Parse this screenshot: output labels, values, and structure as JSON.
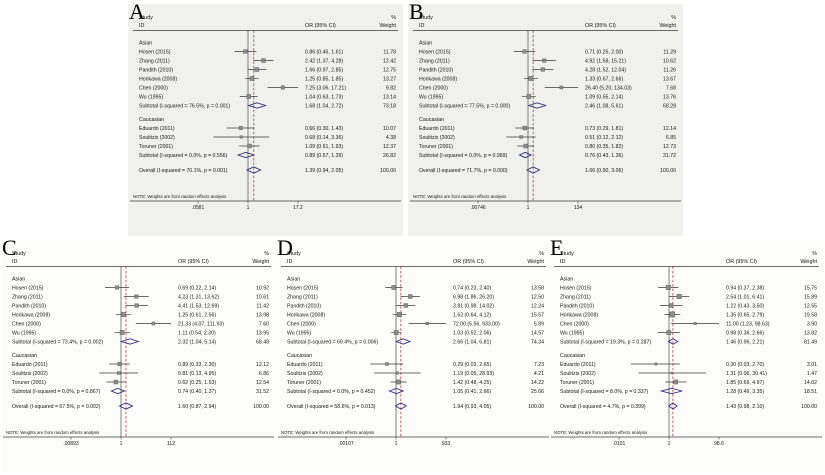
{
  "note": "NOTE: Weights are from random effects analysis",
  "columns": {
    "study": "Study",
    "id": "ID",
    "or": "OR (95% CI)",
    "pct": "%",
    "weight": "Weight"
  },
  "chart_data": [
    {
      "type": "forest",
      "label": "A",
      "axis": {
        "scale": "log",
        "min": 0.0581,
        "max": 17.21,
        "null_line": 1,
        "ticks": [
          {
            "label": ".0581",
            "value": 0.0581
          },
          {
            "label": "1",
            "value": 1
          },
          {
            "label": "17.2",
            "value": 17.2
          }
        ]
      },
      "groups": [
        {
          "name": "Asian",
          "studies": [
            {
              "id": "Hosen (2015)",
              "est": 0.86,
              "lo": 0.46,
              "hi": 1.61,
              "or": "0.86 (0.46, 1.61)",
              "weight": "11.78"
            },
            {
              "id": "Zhang (2011)",
              "est": 2.42,
              "lo": 1.37,
              "hi": 4.28,
              "or": "2.42 (1.37, 4.28)",
              "weight": "12.42"
            },
            {
              "id": "Pandith (2010)",
              "est": 1.66,
              "lo": 0.97,
              "hi": 2.85,
              "or": "1.66 (0.97, 2.85)",
              "weight": "12.75"
            },
            {
              "id": "Horikawa (2008)",
              "est": 1.25,
              "lo": 0.85,
              "hi": 1.85,
              "or": "1.25 (0.85, 1.85)",
              "weight": "13.27"
            },
            {
              "id": "Chen (2000)",
              "est": 7.25,
              "lo": 3.06,
              "hi": 17.21,
              "or": "7.25 (3.06, 17.21)",
              "weight": "9.82"
            },
            {
              "id": "Wu (1995)",
              "est": 1.04,
              "lo": 0.63,
              "hi": 1.73,
              "or": "1.04 (0.63, 1.73)",
              "weight": "13.14"
            }
          ],
          "subtotal": {
            "id": "Subtotal  (I-squared = 76.5%, p = 0.001)",
            "est": 1.68,
            "lo": 1.04,
            "hi": 2.72,
            "or": "1.68 (1.04, 2.72)",
            "weight": "73.18"
          }
        },
        {
          "name": "Caucasian",
          "studies": [
            {
              "id": "Eduardo (2011)",
              "est": 0.66,
              "lo": 0.3,
              "hi": 1.43,
              "or": "0.66 (0.30, 1.43)",
              "weight": "10.07"
            },
            {
              "id": "Soulitzis (2002)",
              "est": 0.68,
              "lo": 0.14,
              "hi": 3.36,
              "or": "0.68 (0.14, 3.36)",
              "weight": "4.38"
            },
            {
              "id": "Toruner (2001)",
              "est": 1.09,
              "lo": 0.61,
              "hi": 1.93,
              "or": "1.09 (0.61, 1.93)",
              "weight": "12.37"
            }
          ],
          "subtotal": {
            "id": "Subtotal  (I-squared = 0.0%, p = 0.556)",
            "est": 0.89,
            "lo": 0.57,
            "hi": 1.39,
            "or": "0.89 (0.57, 1.39)",
            "weight": "26.82"
          }
        }
      ],
      "overall": {
        "id": "Overall  (I-squared = 70.1%, p = 0.001)",
        "est": 1.39,
        "lo": 0.94,
        "hi": 2.05,
        "or": "1.39 (0.94, 2.05)",
        "weight": "100.00"
      }
    },
    {
      "type": "forest",
      "label": "B",
      "axis": {
        "scale": "log",
        "min": 0.00746,
        "max": 134.03,
        "null_line": 1,
        "ticks": [
          {
            "label": ".00746",
            "value": 0.00746
          },
          {
            "label": "1",
            "value": 1
          },
          {
            "label": "134",
            "value": 134
          }
        ]
      },
      "groups": [
        {
          "name": "Asian",
          "studies": [
            {
              "id": "Hosen (2015)",
              "est": 0.71,
              "lo": 0.25,
              "hi": 2.0,
              "or": "0.71 (0.25, 2.00)",
              "weight": "11.29"
            },
            {
              "id": "Zhang (2011)",
              "est": 4.92,
              "lo": 1.58,
              "hi": 15.21,
              "or": "4.92 (1.58, 15.21)",
              "weight": "10.62"
            },
            {
              "id": "Pandith (2010)",
              "est": 4.28,
              "lo": 1.52,
              "hi": 12.04,
              "or": "4.28 (1.52, 12.04)",
              "weight": "11.26"
            },
            {
              "id": "Horikawa (2008)",
              "est": 1.33,
              "lo": 0.67,
              "hi": 2.66,
              "or": "1.33 (0.67, 2.66)",
              "weight": "13.67"
            },
            {
              "id": "Chen (2000)",
              "est": 26.4,
              "lo": 5.2,
              "hi": 134.03,
              "or": "26.40 (5.20, 134.03)",
              "weight": "7.68"
            },
            {
              "id": "Wu (1995)",
              "est": 1.09,
              "lo": 0.55,
              "hi": 2.14,
              "or": "1.09 (0.55, 2.14)",
              "weight": "13.76"
            }
          ],
          "subtotal": {
            "id": "Subtotal  (I-squared = 77.5%, p = 0.000)",
            "est": 2.46,
            "lo": 1.08,
            "hi": 5.61,
            "or": "2.46 (1.08, 5.61)",
            "weight": "68.28"
          }
        },
        {
          "name": "Caucasian",
          "studies": [
            {
              "id": "Eduardo (2011)",
              "est": 0.73,
              "lo": 0.29,
              "hi": 1.81,
              "or": "0.73 (0.29, 1.81)",
              "weight": "12.14"
            },
            {
              "id": "Soulitzis (2002)",
              "est": 0.51,
              "lo": 0.12,
              "hi": 2.12,
              "or": "0.51 (0.12, 2.12)",
              "weight": "6.85"
            },
            {
              "id": "Toruner (2001)",
              "est": 0.8,
              "lo": 0.35,
              "hi": 1.82,
              "or": "0.80 (0.35, 1.82)",
              "weight": "12.73"
            }
          ],
          "subtotal": {
            "id": "Subtotal  (I-squared = 0.0%, p = 0.969)",
            "est": 0.76,
            "lo": 0.43,
            "hi": 1.36,
            "or": "0.76 (0.43, 1.36)",
            "weight": "31.72"
          }
        }
      ],
      "overall": {
        "id": "Overall  (I-squared = 71.7%, p = 0.000)",
        "est": 1.66,
        "lo": 0.9,
        "hi": 3.06,
        "or": "1.66 (0.90, 3.06)",
        "weight": "100.00"
      }
    },
    {
      "type": "forest",
      "label": "C",
      "axis": {
        "scale": "log",
        "min": 0.00893,
        "max": 111.93,
        "null_line": 1,
        "ticks": [
          {
            "label": ".00893",
            "value": 0.00893
          },
          {
            "label": "1",
            "value": 1
          },
          {
            "label": "112",
            "value": 111.93
          }
        ]
      },
      "groups": [
        {
          "name": "Asian",
          "studies": [
            {
              "id": "Hosen (2015)",
              "est": 0.69,
              "lo": 0.22,
              "hi": 2.14,
              "or": "0.69 (0.22, 2.14)",
              "weight": "10.92"
            },
            {
              "id": "Zhang (2011)",
              "est": 4.23,
              "lo": 1.31,
              "hi": 13.62,
              "or": "4.23 (1.31, 13.62)",
              "weight": "10.61"
            },
            {
              "id": "Pandith (2010)",
              "est": 4.41,
              "lo": 1.53,
              "hi": 12.69,
              "or": "4.41 (1.53, 12.69)",
              "weight": "11.42"
            },
            {
              "id": "Horikawa (2008)",
              "est": 1.25,
              "lo": 0.61,
              "hi": 2.56,
              "or": "1.25 (0.61, 2.56)",
              "weight": "13.98"
            },
            {
              "id": "Chen (2000)",
              "est": 21.33,
              "lo": 4.07,
              "hi": 111.93,
              "or": "21.33 (4.07, 111.93)",
              "weight": "7.60"
            },
            {
              "id": "Wu (1995)",
              "est": 1.11,
              "lo": 0.54,
              "hi": 2.3,
              "or": "1.11 (0.54, 2.30)",
              "weight": "13.95"
            }
          ],
          "subtotal": {
            "id": "Subtotal  (I-squared = 73.4%, p = 0.002)",
            "est": 2.32,
            "lo": 1.04,
            "hi": 5.14,
            "or": "2.32 (1.04, 5.14)",
            "weight": "68.48"
          }
        },
        {
          "name": "Caucasian",
          "studies": [
            {
              "id": "Eduardo (2011)",
              "est": 0.89,
              "lo": 0.33,
              "hi": 2.3,
              "or": "0.89 (0.33, 2.30)",
              "weight": "12.12"
            },
            {
              "id": "Soulitzis (2002)",
              "est": 0.81,
              "lo": 0.13,
              "hi": 4.95,
              "or": "0.81 (0.13, 4.95)",
              "weight": "6.86"
            },
            {
              "id": "Toruner (2001)",
              "est": 0.62,
              "lo": 0.25,
              "hi": 1.53,
              "or": "0.62 (0.25, 1.53)",
              "weight": "12.54"
            }
          ],
          "subtotal": {
            "id": "Subtotal  (I-squared = 0.0%, p = 0.867)",
            "est": 0.74,
            "lo": 0.4,
            "hi": 1.37,
            "or": "0.74 (0.40, 1.37)",
            "weight": "31.52"
          }
        }
      ],
      "overall": {
        "id": "Overall  (I-squared = 67.5%, p = 0.002)",
        "est": 1.6,
        "lo": 0.87,
        "hi": 2.94,
        "or": "1.60 (0.87, 2.94)",
        "weight": "100.00"
      }
    },
    {
      "type": "forest",
      "label": "D",
      "axis": {
        "scale": "log",
        "min": 0.00107,
        "max": 933,
        "null_line": 1,
        "ticks": [
          {
            "label": ".00107",
            "value": 0.00107
          },
          {
            "label": "1",
            "value": 1
          },
          {
            "label": "933",
            "value": 933
          }
        ]
      },
      "groups": [
        {
          "name": "Asian",
          "studies": [
            {
              "id": "Hosen (2015)",
              "est": 0.74,
              "lo": 0.23,
              "hi": 2.4,
              "or": "0.74 (0.23, 2.40)",
              "weight": "13.58"
            },
            {
              "id": "Zhang (2011)",
              "est": 6.98,
              "lo": 1.86,
              "hi": 26.2,
              "or": "6.98 (1.86, 26.20)",
              "weight": "12.50"
            },
            {
              "id": "Pandith (2010)",
              "est": 3.81,
              "lo": 0.98,
              "hi": 14.02,
              "or": "3.81 (0.98, 14.02)",
              "weight": "12.24"
            },
            {
              "id": "Horikawa (2008)",
              "est": 1.62,
              "lo": 0.64,
              "hi": 4.12,
              "or": "1.62 (0.64, 4.12)",
              "weight": "15.57"
            },
            {
              "id": "Chen (2000)",
              "est": 72.0,
              "lo": 5.56,
              "hi": 933.0,
              "or": "72.00 (5.56, 933.00)",
              "weight": "5.89"
            },
            {
              "id": "Wu (1995)",
              "est": 1.03,
              "lo": 0.52,
              "hi": 2.06,
              "or": "1.03 (0.52, 2.06)",
              "weight": "14.57"
            }
          ],
          "subtotal": {
            "id": "Subtotal  (I-squared = 69.4%, p = 0.006)",
            "est": 2.66,
            "lo": 1.04,
            "hi": 6.81,
            "or": "2.66 (1.04, 6.81)",
            "weight": "74.34"
          }
        },
        {
          "name": "Caucasian",
          "studies": [
            {
              "id": "Eduardo (2011)",
              "est": 0.29,
              "lo": 0.03,
              "hi": 2.65,
              "or": "0.29 (0.03, 2.65)",
              "weight": "7.23"
            },
            {
              "id": "Soulitzis (2002)",
              "est": 1.19,
              "lo": 0.05,
              "hi": 28.93,
              "or": "1.19 (0.05, 28.93)",
              "weight": "4.21"
            },
            {
              "id": "Toruner (2001)",
              "est": 1.42,
              "lo": 0.48,
              "hi": 4.25,
              "or": "1.42 (0.48, 4.25)",
              "weight": "14.22"
            }
          ],
          "subtotal": {
            "id": "Subtotal  (I-squared = 0.0%, p = 0.452)",
            "est": 1.05,
            "lo": 0.41,
            "hi": 2.66,
            "or": "1.05 (0.41, 2.66)",
            "weight": "25.66"
          }
        }
      ],
      "overall": {
        "id": "Overall  (I-squared = 58.6%, p = 0.013)",
        "est": 1.94,
        "lo": 0.93,
        "hi": 4.05,
        "or": "1.94 (0.93, 4.05)",
        "weight": "100.00"
      }
    },
    {
      "type": "forest",
      "label": "E",
      "axis": {
        "scale": "log",
        "min": 0.0101,
        "max": 98.63,
        "null_line": 1,
        "ticks": [
          {
            "label": ".0101",
            "value": 0.0101
          },
          {
            "label": "1",
            "value": 1
          },
          {
            "label": "98.6",
            "value": 98.6
          }
        ]
      },
      "groups": [
        {
          "name": "Asian",
          "studies": [
            {
              "id": "Hosen (2015)",
              "est": 0.94,
              "lo": 0.37,
              "hi": 2.38,
              "or": "0.94 (0.37, 2.38)",
              "weight": "15.75"
            },
            {
              "id": "Zhang (2011)",
              "est": 2.54,
              "lo": 1.01,
              "hi": 6.41,
              "or": "2.54 (1.01, 6.41)",
              "weight": "15.89"
            },
            {
              "id": "Pandith (2010)",
              "est": 1.22,
              "lo": 0.43,
              "hi": 3.5,
              "or": "1.22 (0.43, 3.50)",
              "weight": "12.55"
            },
            {
              "id": "Horikawa (2008)",
              "est": 1.35,
              "lo": 0.65,
              "hi": 2.79,
              "or": "1.35 (0.65, 2.79)",
              "weight": "19.58"
            },
            {
              "id": "Chen (2000)",
              "est": 11.0,
              "lo": 1.23,
              "hi": 98.63,
              "or": "11.00 (1.23, 98.63)",
              "weight": "3.90"
            },
            {
              "id": "Wu (1995)",
              "est": 0.98,
              "lo": 0.36,
              "hi": 2.66,
              "or": "0.98 (0.36, 2.66)",
              "weight": "13.82"
            }
          ],
          "subtotal": {
            "id": "Subtotal  (I-squared = 19.3%, p = 0.287)",
            "est": 1.46,
            "lo": 0.96,
            "hi": 2.21,
            "or": "1.46 (0.96, 2.21)",
            "weight": "81.49"
          }
        },
        {
          "name": "Caucasian",
          "studies": [
            {
              "id": "Eduardo (2011)",
              "est": 0.3,
              "lo": 0.03,
              "hi": 2.7,
              "or": "0.30 (0.03, 2.70)",
              "weight": "3.01"
            },
            {
              "id": "Soulitzis (2002)",
              "est": 1.31,
              "lo": 0.06,
              "hi": 30.41,
              "or": "1.31 (0.06, 30.41)",
              "weight": "1.47"
            },
            {
              "id": "Toruner (2001)",
              "est": 1.85,
              "lo": 0.69,
              "hi": 4.97,
              "or": "1.85 (0.69, 4.97)",
              "weight": "14.02"
            }
          ],
          "subtotal": {
            "id": "Subtotal  (I-squared = 8.0%, p = 0.337)",
            "est": 1.28,
            "lo": 0.49,
            "hi": 3.35,
            "or": "1.28 (0.49, 3.35)",
            "weight": "18.51"
          }
        }
      ],
      "overall": {
        "id": "Overall  (I-squared = 4.7%, p = 0.399)",
        "est": 1.43,
        "lo": 0.98,
        "hi": 2.1,
        "or": "1.43 (0.98, 2.10)",
        "weight": "100.00"
      }
    }
  ]
}
